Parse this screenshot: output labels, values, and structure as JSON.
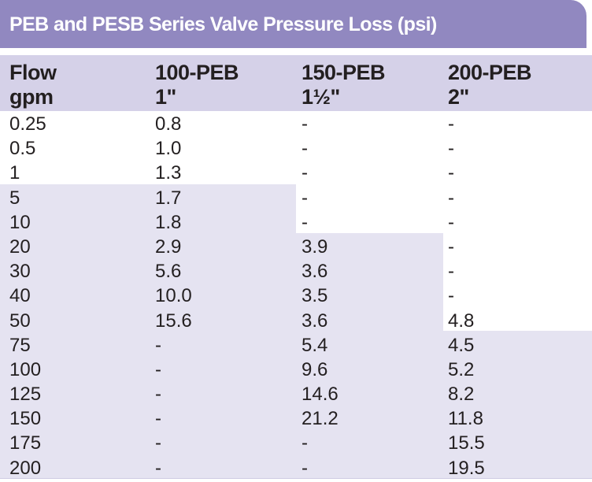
{
  "title": "PEB and PESB Series Valve Pressure Loss (psi)",
  "columns": [
    {
      "line1": "Flow",
      "line2": "gpm"
    },
    {
      "line1": "100-PEB",
      "line2": "1\""
    },
    {
      "line1": "150-PEB",
      "line2": "1½\""
    },
    {
      "line1": "200-PEB",
      "line2": "2\""
    }
  ],
  "rows": [
    [
      "0.25",
      "0.8",
      "-",
      "-"
    ],
    [
      "0.5",
      "1.0",
      "-",
      "-"
    ],
    [
      "1",
      "1.3",
      "-",
      "-"
    ],
    [
      "5",
      "1.7",
      "-",
      "-"
    ],
    [
      "10",
      "1.8",
      "-",
      "-"
    ],
    [
      "20",
      "2.9",
      "3.9",
      "-"
    ],
    [
      "30",
      "5.6",
      "3.6",
      "-"
    ],
    [
      "40",
      "10.0",
      "3.5",
      "-"
    ],
    [
      "50",
      "15.6",
      "3.6",
      "4.8"
    ],
    [
      "75",
      "-",
      "5.4",
      "4.5"
    ],
    [
      "100",
      "-",
      "9.6",
      "5.2"
    ],
    [
      "125",
      "-",
      "14.6",
      "8.2"
    ],
    [
      "150",
      "-",
      "21.2",
      "11.8"
    ],
    [
      "175",
      "-",
      "-",
      "15.5"
    ],
    [
      "200",
      "-",
      "-",
      "19.5"
    ]
  ],
  "colors": {
    "title_bar": "#9188c0",
    "header_band": "#d5d1e8",
    "shaded_cells": "#e5e3f1",
    "text": "#231f20"
  }
}
